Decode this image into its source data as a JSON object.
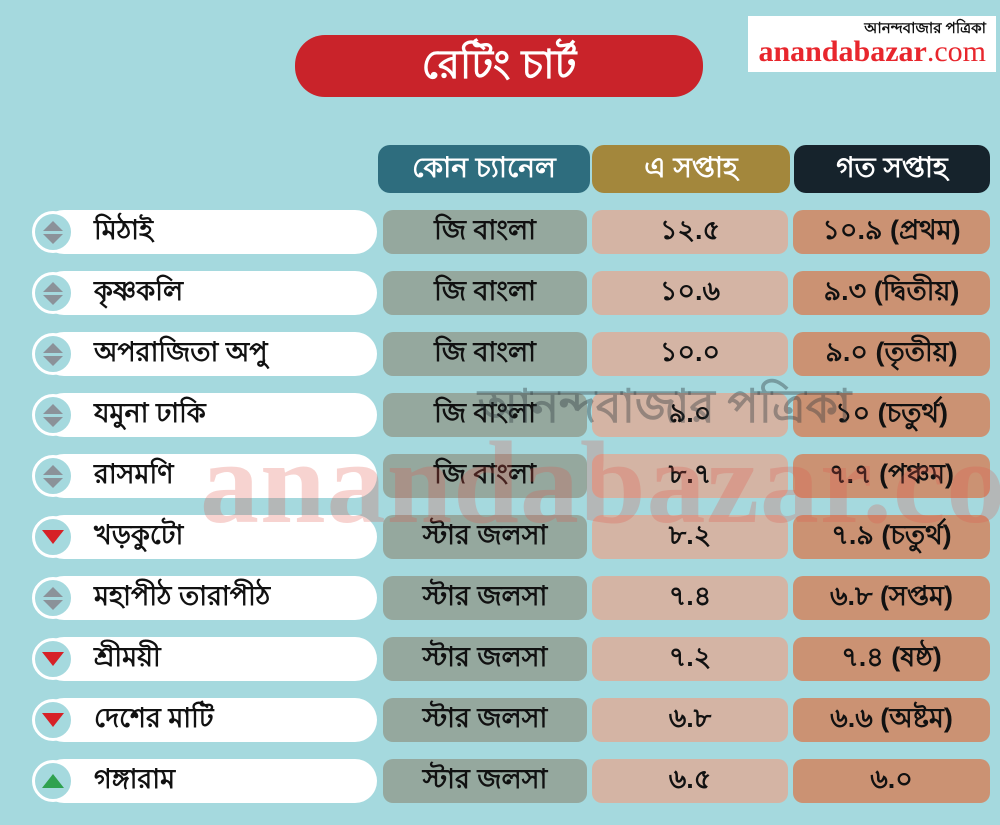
{
  "logo": {
    "masthead": "আনন্দবাজার পত্রিকা",
    "brand": "anandabazar",
    "tld": ".com"
  },
  "title": "রেটিং চার্ট",
  "header": {
    "channel": "কোন চ্যানেল",
    "this_week": "এ সপ্তাহ",
    "last_week": "গত সপ্তাহ"
  },
  "watermark": {
    "line1": "আনন্দবাজার পত্রিকা",
    "line2": "anandabazar.com"
  },
  "colors": {
    "background": "#a5d9de",
    "title_bg": "#c9232a",
    "logo_red": "#e8262d",
    "header_channel_bg": "#2e6d7e",
    "header_this_week_bg": "#a3873c",
    "header_last_week_bg": "#16232c",
    "channel_chip_bg": "#95a89e",
    "this_week_chip_bg": "#d4b4a4",
    "last_week_chip_bg": "#cb9273",
    "trend_up": "#2fa14f",
    "trend_down": "#d62127",
    "trend_neutral": "#8b9299"
  },
  "rows": [
    {
      "trend": "neutral",
      "show": "মিঠাই",
      "channel": "জি বাংলা",
      "this_week": "১২.৫",
      "last_week": "১০.৯ (প্রথম)"
    },
    {
      "trend": "neutral",
      "show": "কৃষ্ণকলি",
      "channel": "জি বাংলা",
      "this_week": "১০.৬",
      "last_week": "৯.৩ (দ্বিতীয়)"
    },
    {
      "trend": "neutral",
      "show": "অপরাজিতা অপু",
      "channel": "জি বাংলা",
      "this_week": "১০.০",
      "last_week": "৯.০ (তৃতীয়)"
    },
    {
      "trend": "neutral",
      "show": "যমুনা ঢাকি",
      "channel": "জি বাংলা",
      "this_week": "৯.০",
      "last_week": "১০ (চতুর্থ)"
    },
    {
      "trend": "neutral",
      "show": "রাসমণি",
      "channel": "জি বাংলা",
      "this_week": "৮.৭",
      "last_week": "৭.৭ (পঞ্চম)"
    },
    {
      "trend": "down",
      "show": "খড়কুটো",
      "channel": "স্টার জলসা",
      "this_week": "৮.২",
      "last_week": "৭.৯ (চতুর্থ)"
    },
    {
      "trend": "neutral",
      "show": "মহাপীঠ তারাপীঠ",
      "channel": "স্টার জলসা",
      "this_week": "৭.৪",
      "last_week": "৬.৮ (সপ্তম)"
    },
    {
      "trend": "down",
      "show": "শ্রীময়ী",
      "channel": "স্টার জলসা",
      "this_week": "৭.২",
      "last_week": "৭.৪ (ষষ্ঠ)"
    },
    {
      "trend": "down",
      "show": "দেশের মাটি",
      "channel": "স্টার জলসা",
      "this_week": "৬.৮",
      "last_week": "৬.৬ (অষ্টম)"
    },
    {
      "trend": "up",
      "show": "গঙ্গারাম",
      "channel": "স্টার জলসা",
      "this_week": "৬.৫",
      "last_week": "৬.০"
    }
  ],
  "chart_data": {
    "type": "table",
    "title": "রেটিং চার্ট",
    "columns": [
      "কোন চ্যানেল",
      "এ সপ্তাহ",
      "গত সপ্তাহ"
    ],
    "categories": [
      "মিঠাই",
      "কৃষ্ণকলি",
      "অপরাজিতা অপু",
      "যমুনা ঢাকি",
      "রাসমণি",
      "খড়কুটো",
      "মহাপীঠ তারাপীঠ",
      "শ্রীময়ী",
      "দেশের মাটি",
      "গঙ্গারাম"
    ],
    "channels": [
      "জি বাংলা",
      "জি বাংলা",
      "জি বাংলা",
      "জি বাংলা",
      "জি বাংলা",
      "স্টার জলসা",
      "স্টার জলসা",
      "স্টার জলসা",
      "স্টার জলসা",
      "স্টার জলসা"
    ],
    "series": [
      {
        "name": "এ সপ্তাহ",
        "values": [
          12.5,
          10.6,
          10.0,
          9.0,
          8.7,
          8.2,
          7.4,
          7.2,
          6.8,
          6.5
        ]
      },
      {
        "name": "গত সপ্তাহ",
        "values": [
          10.9,
          9.3,
          9.0,
          10,
          7.7,
          7.9,
          6.8,
          7.4,
          6.6,
          6.0
        ]
      }
    ],
    "last_week_ranks": [
      "প্রথম",
      "দ্বিতীয়",
      "তৃতীয়",
      "চতুর্থ",
      "পঞ্চম",
      "চতুর্থ",
      "সপ্তম",
      "ষষ্ঠ",
      "অষ্টম",
      ""
    ],
    "trends": [
      "neutral",
      "neutral",
      "neutral",
      "neutral",
      "neutral",
      "down",
      "neutral",
      "down",
      "down",
      "up"
    ]
  }
}
